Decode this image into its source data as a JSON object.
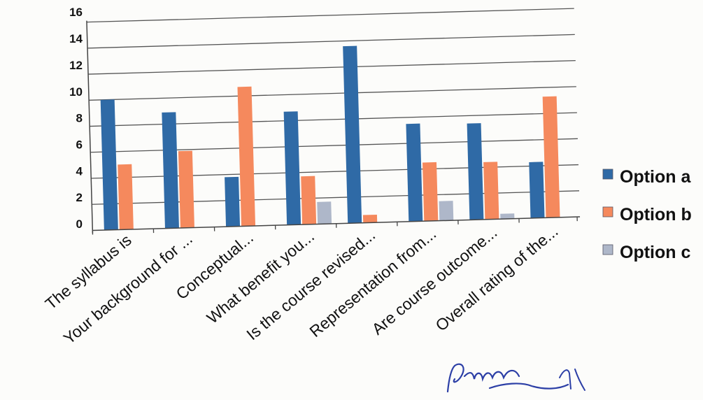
{
  "chart_data": {
    "type": "bar",
    "title": "",
    "xlabel": "",
    "ylabel": "",
    "ylim": [
      0,
      16
    ],
    "yticks": [
      0,
      2,
      4,
      6,
      8,
      10,
      12,
      14,
      16
    ],
    "grid": true,
    "legend_position": "right",
    "categories": [
      "The syllabus is",
      "Your background for ...",
      "Conceptual...",
      "What benefit you...",
      "Is the course revised...",
      "Representation from...",
      "Are course outcome...",
      "Overall rating of the..."
    ],
    "series": [
      {
        "name": "Option a",
        "color": "#2f6aa6",
        "values": [
          10,
          8.9,
          3.8,
          8.7,
          13.6,
          7.5,
          7.4,
          4.3
        ]
      },
      {
        "name": "Option b",
        "color": "#f5895d",
        "values": [
          5,
          5.9,
          10.7,
          3.7,
          0.6,
          4.5,
          4.4,
          9.3
        ]
      },
      {
        "name": "Option c",
        "color": "#aeb7c9",
        "values": [
          0,
          0,
          0,
          1.7,
          0,
          1.5,
          0.4,
          0
        ]
      }
    ]
  }
}
